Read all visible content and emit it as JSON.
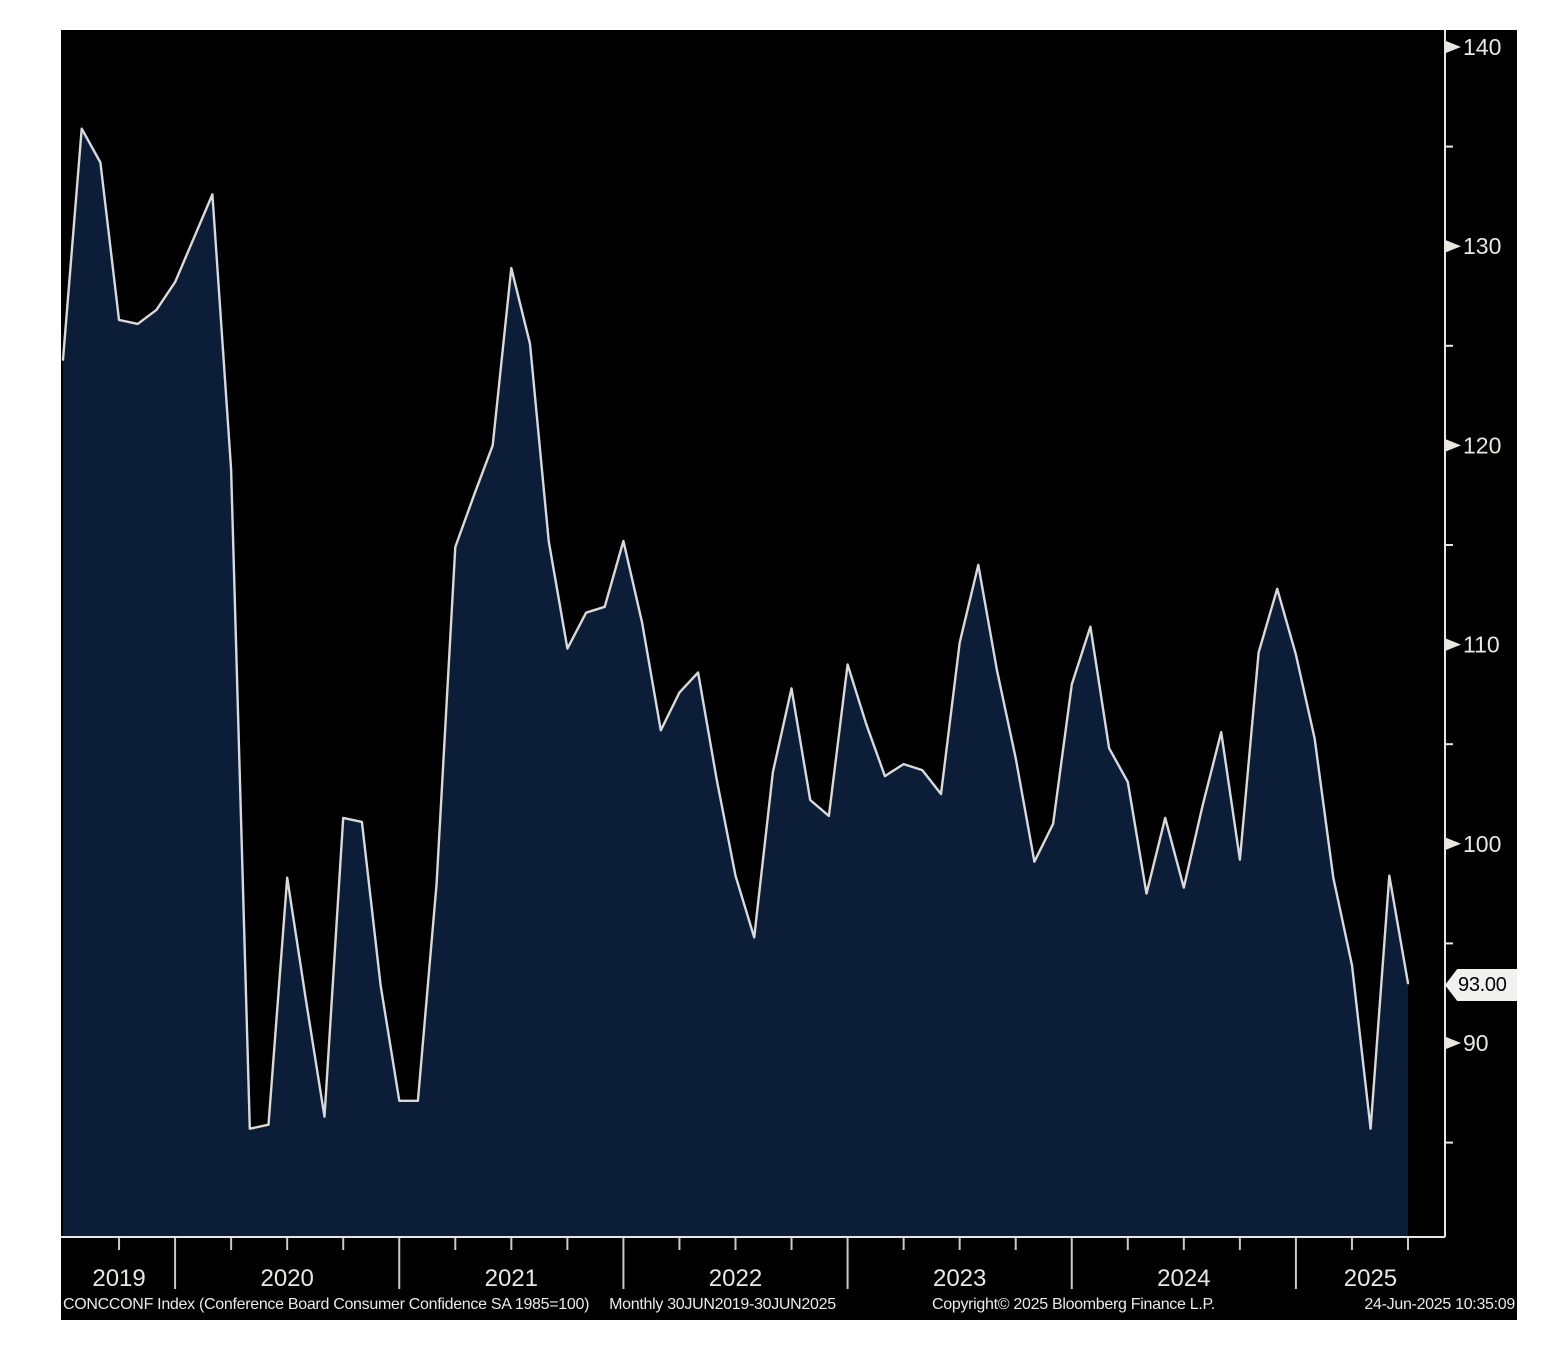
{
  "chart": {
    "instrument": "CONCCONF Index (Conference Board Consumer Confidence SA 1985=100)",
    "period_label": "Monthly 30JUN2019-30JUN2025",
    "copyright": "Copyright© 2025 Bloomberg Finance L.P.",
    "timestamp": "24-Jun-2025 10:35:09",
    "last_value_label": "93.00"
  },
  "chart_data": {
    "type": "area",
    "series_name": "CONCCONF Index - Conference Board Consumer Confidence SA 1985=100",
    "frequency": "Monthly",
    "start_month": "Jun 2019",
    "end_month": "Jun 2025",
    "values": [
      124.3,
      135.9,
      134.2,
      126.3,
      126.1,
      126.8,
      128.2,
      130.4,
      132.6,
      118.8,
      85.7,
      85.9,
      98.3,
      92.2,
      86.3,
      101.3,
      101.1,
      92.9,
      87.1,
      87.1,
      98.0,
      114.9,
      117.5,
      120.0,
      128.9,
      125.1,
      115.2,
      109.8,
      111.6,
      111.9,
      115.2,
      111.1,
      105.7,
      107.6,
      108.6,
      103.2,
      98.4,
      95.3,
      103.6,
      107.8,
      102.2,
      101.4,
      109.0,
      106.0,
      103.4,
      104.0,
      103.7,
      102.5,
      110.1,
      114.0,
      108.7,
      104.3,
      99.1,
      101.0,
      108.0,
      110.9,
      104.8,
      103.1,
      97.5,
      101.3,
      97.8,
      101.9,
      105.6,
      99.2,
      109.6,
      112.8,
      109.5,
      105.3,
      98.3,
      93.9,
      85.7,
      98.4,
      93.0
    ],
    "last_value": 93.0,
    "x_tick_years": [
      "2019",
      "2020",
      "2021",
      "2022",
      "2023",
      "2024",
      "2025"
    ],
    "y_ticks_major": [
      90,
      100,
      110,
      120,
      130,
      140
    ],
    "y_ticks_minor": [
      85,
      95,
      105,
      115,
      125,
      135
    ],
    "ylim": [
      80.3,
      140.9
    ],
    "xlabel": "",
    "ylabel": "",
    "grid": "off",
    "legend": "none"
  },
  "colors": {
    "page_bg": "#ffffff",
    "canvas_bg": "#000000",
    "area_fill": "#0c1d38",
    "line": "#d8d9da",
    "axis": "#e6e6e4",
    "divider": "#c9c9c7",
    "tick_label": "#e9e7e0",
    "badge_bg": "#f1f1ee",
    "badge_text": "#000000"
  }
}
